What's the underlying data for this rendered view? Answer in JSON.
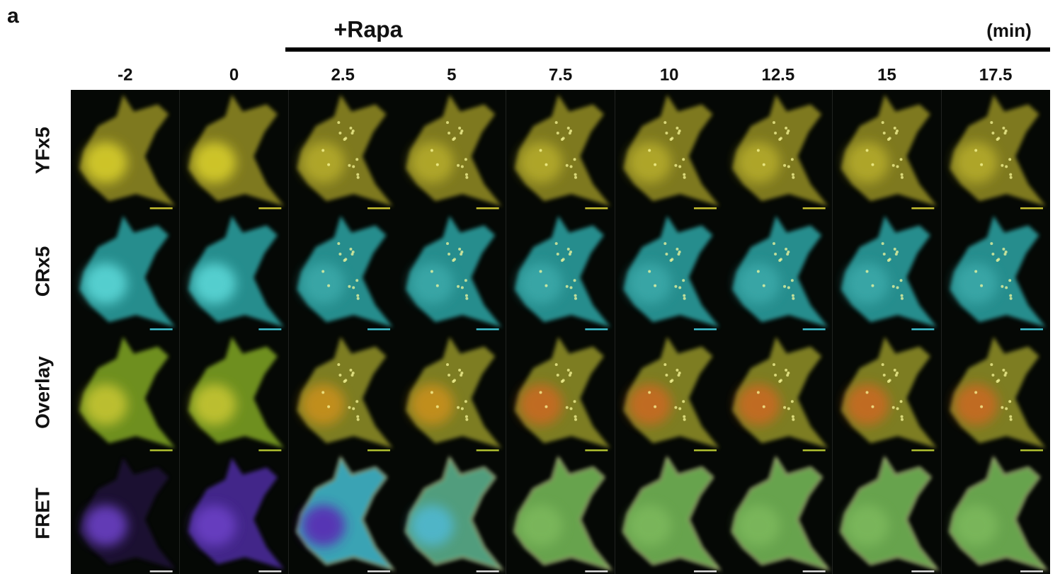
{
  "panel_label": "a",
  "treatment": "+Rapa",
  "unit": "(min)",
  "timepoints": [
    "-2",
    "0",
    "2.5",
    "5",
    "7.5",
    "10",
    "12.5",
    "15",
    "17.5"
  ],
  "rows": [
    "YFx5",
    "CRx5",
    "Overlay",
    "FRET"
  ]
}
